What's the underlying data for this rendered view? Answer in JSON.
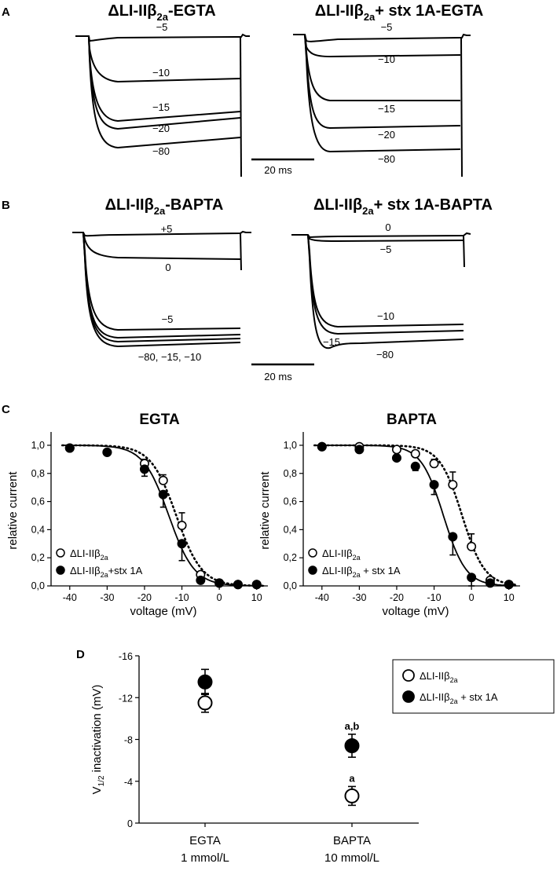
{
  "panels": {
    "A": {
      "label": "A",
      "scale_bar": "20 ms",
      "traces": [
        {
          "title": "ΔLI-IIβ₂ₐ-EGTA",
          "title_main": "ΔLI-IIβ",
          "title_sub": "2a",
          "title_tail": "-EGTA",
          "traces_mV": [
            "−5",
            "−10",
            "−15",
            "−20",
            "−80"
          ]
        },
        {
          "title": "ΔLI-IIβ₂ₐ+ stx 1A-EGTA",
          "title_main": "ΔLI-IIβ",
          "title_sub": "2a",
          "title_tail": "+ stx 1A-EGTA",
          "traces_mV": [
            "−5",
            "−10",
            "−15",
            "−20",
            "−80"
          ]
        }
      ]
    },
    "B": {
      "label": "B",
      "scale_bar": "20 ms",
      "traces": [
        {
          "title": "ΔLI-IIβ₂ₐ-BAPTA",
          "title_main": "ΔLI-IIβ",
          "title_sub": "2a",
          "title_tail": "-BAPTA",
          "traces_mV": [
            "+5",
            "0",
            "−5",
            "−80, −15, −10"
          ]
        },
        {
          "title": "ΔLI-IIβ₂ₐ+ stx 1A-BAPTA",
          "title_main": "ΔLI-IIβ",
          "title_sub": "2a",
          "title_tail": "+ stx 1A-BAPTA",
          "traces_mV": [
            "0",
            "−5",
            "−10",
            "−15",
            "−80"
          ]
        }
      ]
    },
    "C": {
      "label": "C"
    },
    "D": {
      "label": "D"
    }
  },
  "chart_data": [
    {
      "panel": "C",
      "type": "scatter",
      "title": "EGTA",
      "xlabel": "voltage (mV)",
      "ylabel": "relative current",
      "xlim": [
        -45,
        13
      ],
      "ylim": [
        0,
        1.05
      ],
      "xticks": [
        -40,
        -30,
        -20,
        -10,
        0,
        10
      ],
      "xtick_labels": [
        "-40",
        "-30",
        "-20",
        "-10",
        "0",
        "10"
      ],
      "yticks": [
        0,
        0.2,
        0.4,
        0.6,
        0.8,
        1.0
      ],
      "ytick_labels": [
        "0,0",
        "0,2",
        "0,4",
        "0,6",
        "0,8",
        "1,0"
      ],
      "legend_position": "bottom-left",
      "series": [
        {
          "name": "ΔLI-IIβ₂ₐ",
          "name_main": "ΔLI-IIβ",
          "name_sub": "2a",
          "name_tail": "",
          "marker": "open-circle",
          "fit": "dotted",
          "v_half": -11.5,
          "k": 3.4,
          "x": [
            -40,
            -30,
            -20,
            -15,
            -10,
            -5,
            0,
            5,
            10
          ],
          "y": [
            0.98,
            0.95,
            0.87,
            0.75,
            0.43,
            0.08,
            0.02,
            0.01,
            0.01
          ],
          "err": [
            0,
            0,
            0.03,
            0.04,
            0.09,
            0.02,
            0,
            0,
            0
          ]
        },
        {
          "name": "ΔLI-IIβ₂ₐ+stx 1A",
          "name_main": "ΔLI-IIβ",
          "name_sub": "2a",
          "name_tail": "+stx 1A",
          "marker": "filled-circle",
          "fit": "solid",
          "v_half": -13.5,
          "k": 3.4,
          "x": [
            -40,
            -30,
            -20,
            -15,
            -10,
            -5,
            0,
            5,
            10
          ],
          "y": [
            0.98,
            0.95,
            0.83,
            0.65,
            0.3,
            0.04,
            0.02,
            0.01,
            0.01
          ],
          "err": [
            0,
            0,
            0.05,
            0.09,
            0.12,
            0.02,
            0,
            0,
            0
          ]
        }
      ]
    },
    {
      "panel": "C",
      "type": "scatter",
      "title": "BAPTA",
      "xlabel": "voltage (mV)",
      "ylabel": "relative current",
      "xlim": [
        -45,
        13
      ],
      "ylim": [
        0,
        1.05
      ],
      "xticks": [
        -40,
        -30,
        -20,
        -10,
        0,
        10
      ],
      "xtick_labels": [
        "-40",
        "-30",
        "-20",
        "-10",
        "0",
        "10"
      ],
      "yticks": [
        0,
        0.2,
        0.4,
        0.6,
        0.8,
        1.0
      ],
      "ytick_labels": [
        "0,0",
        "0,2",
        "0,4",
        "0,6",
        "0,8",
        "1,0"
      ],
      "legend_position": "bottom-left",
      "series": [
        {
          "name": "ΔLI-IIβ₂ₐ",
          "name_main": "ΔLI-IIβ",
          "name_sub": "2a",
          "name_tail": "",
          "marker": "open-circle",
          "fit": "dotted",
          "v_half": -2.5,
          "k": 3.0,
          "x": [
            -40,
            -30,
            -20,
            -15,
            -10,
            -5,
            0,
            5,
            10
          ],
          "y": [
            0.99,
            0.99,
            0.97,
            0.94,
            0.87,
            0.72,
            0.28,
            0.04,
            0.01
          ],
          "err": [
            0,
            0,
            0,
            0.02,
            0.03,
            0.09,
            0.09,
            0.02,
            0
          ]
        },
        {
          "name": "ΔLI-IIβ₂ₐ + stx 1A",
          "name_main": "ΔLI-IIβ",
          "name_sub": "2a",
          "name_tail": " + stx 1A",
          "marker": "filled-circle",
          "fit": "solid",
          "v_half": -7.5,
          "k": 3.0,
          "x": [
            -40,
            -30,
            -20,
            -15,
            -10,
            -5,
            0,
            5,
            10
          ],
          "y": [
            0.99,
            0.97,
            0.91,
            0.85,
            0.72,
            0.35,
            0.06,
            0.02,
            0.01
          ],
          "err": [
            0,
            0,
            0,
            0.03,
            0.07,
            0.13,
            0.06,
            0,
            0
          ]
        }
      ]
    },
    {
      "panel": "D",
      "type": "scatter",
      "ylabel_main": "V",
      "ylabel_sub": "1/2",
      "ylabel_tail": " inactivation (mV)",
      "categories": [
        "EGTA\n1 mmol/L",
        "BAPTA\n10 mmol/L"
      ],
      "category_line1": [
        "EGTA",
        "BAPTA"
      ],
      "category_line2": [
        "1 mmol/L",
        "10 mmol/L"
      ],
      "ylim": [
        0,
        -16
      ],
      "yticks": [
        0,
        -4,
        -8,
        -12,
        -16
      ],
      "ytick_labels": [
        "0",
        "-4",
        "-8",
        "-12",
        "-16"
      ],
      "legend_position": "top-right",
      "series": [
        {
          "name": "ΔLI-IIβ₂ₐ",
          "name_main": "ΔLI-IIβ",
          "name_sub": "2a",
          "name_tail": "",
          "marker": "open-circle",
          "values": [
            -11.5,
            -2.6
          ],
          "err": [
            0.9,
            0.9
          ]
        },
        {
          "name": "ΔLI-IIβ₂ₐ + stx 1A",
          "name_main": "ΔLI-IIβ",
          "name_sub": "2a",
          "name_tail": " + stx 1A",
          "marker": "filled-circle",
          "values": [
            -13.5,
            -7.4
          ],
          "err": [
            1.2,
            1.1
          ]
        }
      ],
      "annotations": [
        {
          "category": 1,
          "series": 0,
          "text": "a"
        },
        {
          "category": 1,
          "series": 1,
          "text": "a,b"
        }
      ]
    }
  ]
}
